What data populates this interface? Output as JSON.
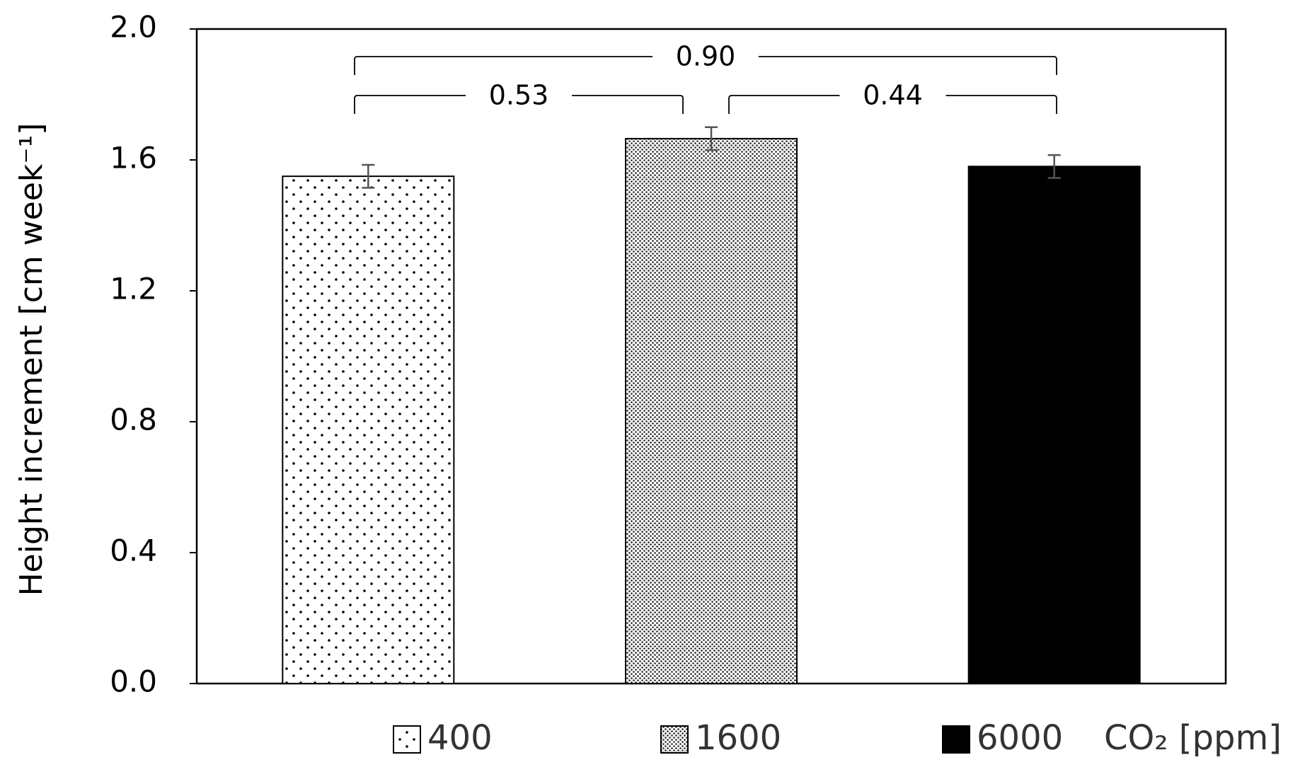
{
  "chart_data": {
    "type": "bar",
    "y_label": "Height increment [cm week⁻¹]",
    "categories": [
      "400",
      "1600",
      "6000"
    ],
    "values": [
      1.55,
      1.665,
      1.58
    ],
    "errors": [
      0.035,
      0.035,
      0.035
    ],
    "patterns": [
      "sparse-dots",
      "dense-dots",
      "solid"
    ],
    "legend_title": "CO₂ [ppm]",
    "annotations": [
      {
        "text": "0.90"
      },
      {
        "text": "0.53"
      },
      {
        "text": "0.44"
      }
    ],
    "ylim": [
      0,
      2.0
    ],
    "yticks": [
      {
        "value": 0,
        "label": "0.0"
      },
      {
        "value": 0.4,
        "label": "0.4"
      },
      {
        "value": 0.8,
        "label": "0.8"
      },
      {
        "value": 1.2,
        "label": "1.2"
      },
      {
        "value": 1.6,
        "label": "1.6"
      },
      {
        "value": 2.0,
        "label": "2.0"
      }
    ]
  }
}
